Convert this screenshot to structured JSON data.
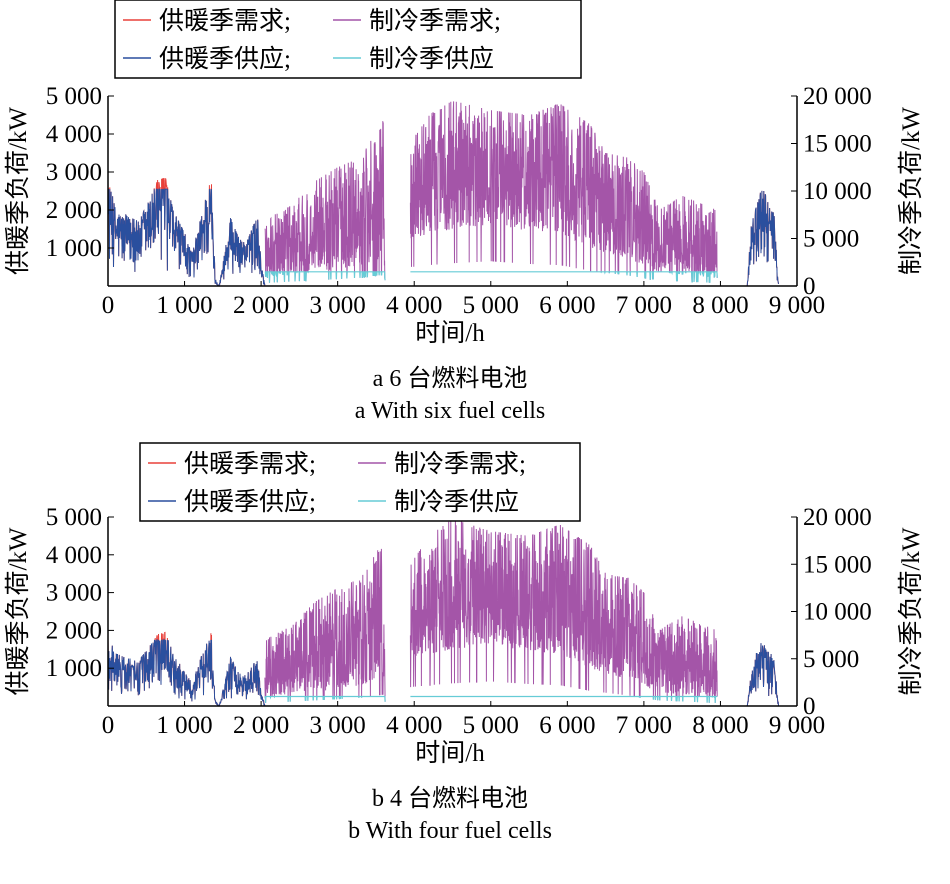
{
  "legend": {
    "heating_demand": "供暖季需求;",
    "cooling_demand": "制冷季需求;",
    "heating_supply": "供暖季供应;",
    "cooling_supply": "制冷季供应"
  },
  "colors": {
    "heating_demand": "#e8403a",
    "heating_supply": "#2a4f9e",
    "cooling_demand": "#a455a8",
    "cooling_supply": "#66ccd6"
  },
  "chart_data": [
    {
      "type": "line",
      "caption_cn": "a   6 台燃料电池",
      "caption_en": "a    With six fuel cells",
      "xlabel": "时间/h",
      "ylabel_left": "供暖季负荷/kW",
      "ylabel_right": "制冷季负荷/kW",
      "xlim": [
        0,
        9000
      ],
      "ylim_left": [
        0,
        5000
      ],
      "ylim_right": [
        0,
        20000
      ],
      "xticks": [
        "0",
        "1 000",
        "2 000",
        "3 000",
        "4 000",
        "5 000",
        "6 000",
        "7 000",
        "8 000",
        "9 000"
      ],
      "yticks_left": [
        "1 000",
        "2 000",
        "3 000",
        "4 000",
        "5 000"
      ],
      "yticks_right": [
        "0",
        "5 000",
        "10 000",
        "15 000",
        "20 000"
      ],
      "heating_supply_cap": 2550,
      "cooling_supply_cap": 1500,
      "heating_demand_envelope": [
        [
          0,
          2750
        ],
        [
          100,
          2100
        ],
        [
          200,
          1900
        ],
        [
          400,
          1700
        ],
        [
          550,
          2300
        ],
        [
          650,
          2800
        ],
        [
          750,
          2850
        ],
        [
          850,
          2000
        ],
        [
          1000,
          1400
        ],
        [
          1100,
          900
        ],
        [
          1250,
          2100
        ],
        [
          1350,
          2850
        ],
        [
          1400,
          200
        ],
        [
          1450,
          0
        ],
        [
          1500,
          600
        ],
        [
          1600,
          1800
        ],
        [
          1700,
          1300
        ],
        [
          1800,
          1100
        ],
        [
          1900,
          1600
        ],
        [
          1950,
          1900
        ],
        [
          2000,
          600
        ],
        [
          2050,
          0
        ],
        [
          8350,
          0
        ],
        [
          8400,
          1600
        ],
        [
          8550,
          2650
        ],
        [
          8650,
          2000
        ],
        [
          8700,
          1900
        ],
        [
          8760,
          0
        ]
      ],
      "cooling_demand_envelope": [
        [
          2050,
          7000,
          800
        ],
        [
          2400,
          8500,
          1200
        ],
        [
          2700,
          11000,
          1500
        ],
        [
          3000,
          12500,
          1800
        ],
        [
          3300,
          13500,
          2200
        ],
        [
          3600,
          17500,
          3000
        ],
        [
          3620,
          0,
          0
        ],
        [
          3950,
          15000,
          5000
        ],
        [
          4200,
          18000,
          5500
        ],
        [
          4500,
          19500,
          6000
        ],
        [
          5000,
          18500,
          6500
        ],
        [
          5500,
          18000,
          5800
        ],
        [
          5900,
          19200,
          5500
        ],
        [
          6300,
          17000,
          4000
        ],
        [
          6500,
          14000,
          3500
        ],
        [
          6800,
          13500,
          2800
        ],
        [
          7000,
          12000,
          2000
        ],
        [
          7200,
          8000,
          1500
        ],
        [
          7500,
          9500,
          1200
        ],
        [
          7950,
          8000,
          800
        ],
        [
          7960,
          0,
          0
        ]
      ]
    },
    {
      "type": "line",
      "caption_cn": "b  4 台燃料电池",
      "caption_en": "b   With four fuel cells",
      "xlabel": "时间/h",
      "ylabel_left": "供暖季负荷/kW",
      "ylabel_right": "制冷季负荷/kW",
      "xlim": [
        0,
        9000
      ],
      "ylim_left": [
        0,
        5000
      ],
      "ylim_right": [
        0,
        20000
      ],
      "xticks": [
        "0",
        "1 000",
        "2 000",
        "3 000",
        "4 000",
        "5 000",
        "6 000",
        "7 000",
        "8 000",
        "9 000"
      ],
      "yticks_left": [
        "1 000",
        "2 000",
        "3 000",
        "4 000",
        "5 000"
      ],
      "yticks_right": [
        "0",
        "5 000",
        "10 000",
        "15 000",
        "20 000"
      ],
      "heating_supply_cap": 1750,
      "cooling_supply_cap": 1000,
      "heating_demand_envelope": [
        [
          0,
          1850
        ],
        [
          100,
          1400
        ],
        [
          200,
          1300
        ],
        [
          400,
          1200
        ],
        [
          550,
          1600
        ],
        [
          650,
          1900
        ],
        [
          750,
          1950
        ],
        [
          850,
          1400
        ],
        [
          1000,
          900
        ],
        [
          1100,
          600
        ],
        [
          1250,
          1500
        ],
        [
          1350,
          1950
        ],
        [
          1400,
          150
        ],
        [
          1450,
          0
        ],
        [
          1500,
          400
        ],
        [
          1600,
          1300
        ],
        [
          1700,
          900
        ],
        [
          1800,
          800
        ],
        [
          1900,
          1100
        ],
        [
          1950,
          1300
        ],
        [
          2000,
          400
        ],
        [
          2050,
          0
        ],
        [
          8350,
          0
        ],
        [
          8400,
          1100
        ],
        [
          8550,
          1750
        ],
        [
          8650,
          1400
        ],
        [
          8700,
          1300
        ],
        [
          8760,
          0
        ]
      ],
      "cooling_demand_envelope": [
        [
          2050,
          7000,
          800
        ],
        [
          2400,
          8500,
          1200
        ],
        [
          2700,
          11000,
          1500
        ],
        [
          3000,
          12500,
          1800
        ],
        [
          3300,
          13500,
          2200
        ],
        [
          3600,
          17500,
          3000
        ],
        [
          3620,
          0,
          0
        ],
        [
          3950,
          15000,
          5000
        ],
        [
          4200,
          18000,
          5500
        ],
        [
          4500,
          19800,
          6000
        ],
        [
          5000,
          18500,
          6500
        ],
        [
          5500,
          18000,
          5800
        ],
        [
          5900,
          19200,
          5500
        ],
        [
          6300,
          17000,
          4000
        ],
        [
          6500,
          14000,
          3500
        ],
        [
          6800,
          13500,
          2800
        ],
        [
          7000,
          12000,
          2000
        ],
        [
          7200,
          8000,
          1500
        ],
        [
          7500,
          9500,
          1200
        ],
        [
          7950,
          8000,
          800
        ],
        [
          7960,
          0,
          0
        ]
      ]
    }
  ]
}
